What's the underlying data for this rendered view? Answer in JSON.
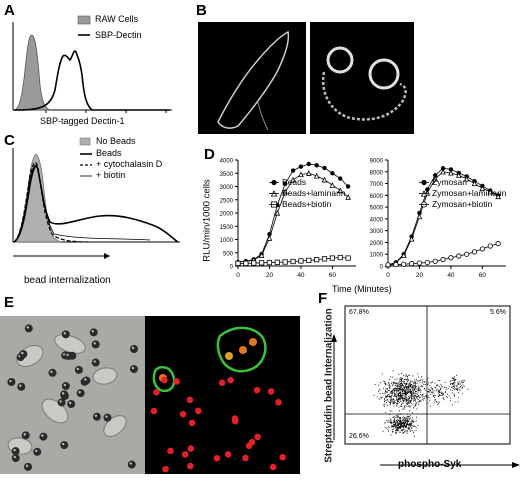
{
  "panels": {
    "A": {
      "letter": "A",
      "legend": [
        "RAW Cells",
        "SBP-Dectin"
      ],
      "xlabel": "SBP-tagged Dectin-1",
      "colors": {
        "raw_fill": "#9a9a9a",
        "line": "#000000"
      }
    },
    "B": {
      "letter": "B"
    },
    "C": {
      "letter": "C",
      "legend": [
        "No Beads",
        "Beads",
        "+ cytochalasin D",
        "+ biotin"
      ],
      "xlabel": "bead internalization"
    },
    "D": {
      "letter": "D",
      "ylabel": "RLU/min/1000 cells",
      "xlabel": "Time (Minutes)",
      "left": {
        "yticks": [
          "0",
          "500",
          "1000",
          "1500",
          "2000",
          "2500",
          "3000",
          "3500",
          "4000"
        ],
        "xticks": [
          "0",
          "20",
          "40",
          "60"
        ],
        "legend": [
          "Beads",
          "Beads+laminarin",
          "Beads+biotin"
        ]
      },
      "right": {
        "yticks": [
          "0",
          "1000",
          "2000",
          "3000",
          "4000",
          "5000",
          "6000",
          "7000",
          "8000",
          "9000"
        ],
        "xticks": [
          "0",
          "20",
          "40",
          "60"
        ],
        "legend": [
          "Zymosan",
          "Zymosan+laminarin",
          "Zymosan+biotin"
        ]
      }
    },
    "E": {
      "letter": "E"
    },
    "F": {
      "letter": "F",
      "ylabel": "Streptavidin bead Internalization",
      "xlabel": "phospho-Syk",
      "quadrants": {
        "top_left": "67.8%",
        "top_right": "5.6%",
        "bottom_left": "26.6%"
      }
    }
  },
  "chart_data": [
    {
      "panel": "D-left",
      "type": "line",
      "xlabel": "Time (Minutes)",
      "ylabel": "RLU/min/1000 cells",
      "xlim": [
        0,
        75
      ],
      "ylim": [
        0,
        4000
      ],
      "x": [
        0,
        5,
        10,
        15,
        20,
        25,
        30,
        35,
        40,
        45,
        50,
        55,
        60,
        65,
        70
      ],
      "series": [
        {
          "name": "Beads",
          "marker": "filled-circle",
          "values": [
            150,
            180,
            250,
            450,
            1200,
            2300,
            3100,
            3600,
            3750,
            3850,
            3800,
            3700,
            3500,
            3300,
            3000
          ]
        },
        {
          "name": "Beads+laminarin",
          "marker": "open-triangle",
          "values": [
            150,
            170,
            230,
            400,
            1050,
            2000,
            2800,
            3250,
            3450,
            3500,
            3400,
            3250,
            3050,
            2850,
            2600
          ]
        },
        {
          "name": "Beads+biotin",
          "marker": "open-square",
          "values": [
            100,
            100,
            110,
            120,
            130,
            140,
            150,
            170,
            190,
            210,
            240,
            270,
            300,
            320,
            300
          ]
        }
      ]
    },
    {
      "panel": "D-right",
      "type": "line",
      "xlabel": "Time (Minutes)",
      "ylabel": "RLU/min/1000 cells",
      "xlim": [
        0,
        75
      ],
      "ylim": [
        0,
        9000
      ],
      "x": [
        0,
        5,
        10,
        15,
        20,
        25,
        30,
        35,
        40,
        45,
        50,
        55,
        60,
        65,
        70
      ],
      "series": [
        {
          "name": "Zymosan",
          "marker": "filled-circle",
          "values": [
            100,
            300,
            1000,
            2500,
            4500,
            6500,
            7700,
            8300,
            8200,
            7900,
            7600,
            7200,
            6800,
            6400,
            6000
          ]
        },
        {
          "name": "Zymosan+laminarin",
          "marker": "open-triangle",
          "values": [
            100,
            280,
            900,
            2300,
            4200,
            6200,
            7400,
            8000,
            7900,
            7700,
            7400,
            7000,
            6600,
            6300,
            5900
          ]
        },
        {
          "name": "Zymosan+biotin",
          "marker": "open-circle",
          "values": [
            100,
            120,
            150,
            200,
            250,
            300,
            400,
            550,
            700,
            850,
            1000,
            1200,
            1450,
            1700,
            1900
          ]
        }
      ]
    }
  ]
}
